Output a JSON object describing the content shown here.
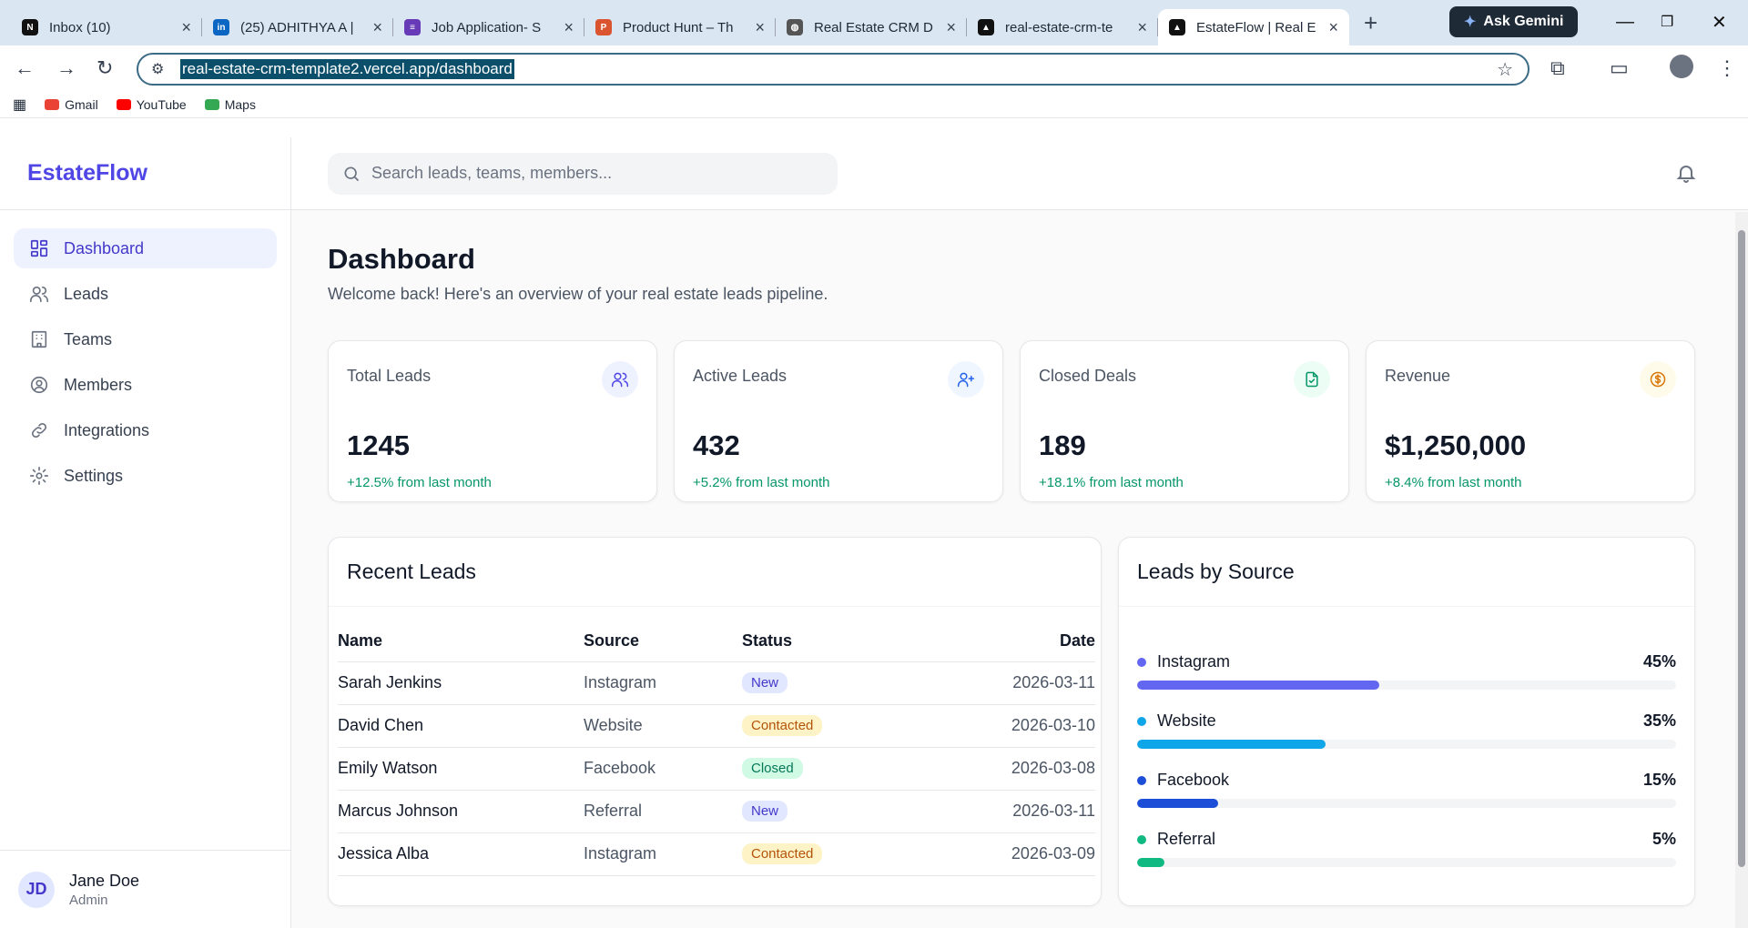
{
  "browser": {
    "tabs": [
      {
        "title": "Inbox (10)",
        "icon": "notion-icon"
      },
      {
        "title": "(25) ADHITHYA A |",
        "icon": "linkedin-icon"
      },
      {
        "title": "Job Application- S",
        "icon": "forms-icon"
      },
      {
        "title": "Product Hunt – Th",
        "icon": "producthunt-icon"
      },
      {
        "title": "Real Estate CRM D",
        "icon": "globe-icon"
      },
      {
        "title": "real-estate-crm-te",
        "icon": "vercel-icon"
      },
      {
        "title": "EstateFlow | Real E",
        "icon": "vercel-icon"
      }
    ],
    "gemini_label": "Ask Gemini",
    "url": "real-estate-crm-template2.vercel.app/dashboard",
    "bookmarks": [
      {
        "label": "Gmail",
        "icon": "gmail-icon"
      },
      {
        "label": "YouTube",
        "icon": "youtube-icon"
      },
      {
        "label": "Maps",
        "icon": "maps-icon"
      }
    ]
  },
  "sidebar": {
    "brand": "EstateFlow",
    "items": [
      {
        "label": "Dashboard",
        "icon": "dashboard-icon",
        "active": true
      },
      {
        "label": "Leads",
        "icon": "users-icon"
      },
      {
        "label": "Teams",
        "icon": "building-icon"
      },
      {
        "label": "Members",
        "icon": "user-circle-icon"
      },
      {
        "label": "Integrations",
        "icon": "link-icon"
      },
      {
        "label": "Settings",
        "icon": "gear-icon"
      }
    ],
    "user": {
      "initials": "JD",
      "name": "Jane Doe",
      "role": "Admin"
    }
  },
  "header": {
    "search_placeholder": "Search leads, teams, members..."
  },
  "page": {
    "title": "Dashboard",
    "subtitle": "Welcome back! Here's an overview of your real estate leads pipeline."
  },
  "stats": [
    {
      "label": "Total Leads",
      "value": "1245",
      "change": "+12.5% from last month",
      "icon": "users-icon",
      "bg": "#eef2ff",
      "fg": "#4f46e5"
    },
    {
      "label": "Active Leads",
      "value": "432",
      "change": "+5.2% from last month",
      "icon": "user-plus-icon",
      "bg": "#eff6ff",
      "fg": "#2563eb"
    },
    {
      "label": "Closed Deals",
      "value": "189",
      "change": "+18.1% from last month",
      "icon": "file-check-icon",
      "bg": "#ecfdf5",
      "fg": "#059669"
    },
    {
      "label": "Revenue",
      "value": "$1,250,000",
      "change": "+8.4% from last month",
      "icon": "dollar-icon",
      "bg": "#fffbeb",
      "fg": "#d97706"
    }
  ],
  "recent_leads": {
    "title": "Recent Leads",
    "columns": [
      "Name",
      "Source",
      "Status",
      "Date"
    ],
    "rows": [
      {
        "name": "Sarah Jenkins",
        "source": "Instagram",
        "status": "New",
        "date": "2026-03-11"
      },
      {
        "name": "David Chen",
        "source": "Website",
        "status": "Contacted",
        "date": "2026-03-10"
      },
      {
        "name": "Emily Watson",
        "source": "Facebook",
        "status": "Closed",
        "date": "2026-03-08"
      },
      {
        "name": "Marcus Johnson",
        "source": "Referral",
        "status": "New",
        "date": "2026-03-11"
      },
      {
        "name": "Jessica Alba",
        "source": "Instagram",
        "status": "Contacted",
        "date": "2026-03-09"
      }
    ],
    "status_colors": {
      "New": {
        "bg": "#e0e7ff",
        "fg": "#4338ca"
      },
      "Contacted": {
        "bg": "#fef3c7",
        "fg": "#b45309"
      },
      "Closed": {
        "bg": "#d1fae5",
        "fg": "#047857"
      }
    }
  },
  "leads_by_source": {
    "title": "Leads by Source",
    "items": [
      {
        "name": "Instagram",
        "percent": 45,
        "label": "45%",
        "color": "#6366f1"
      },
      {
        "name": "Website",
        "percent": 35,
        "label": "35%",
        "color": "#0ea5e9"
      },
      {
        "name": "Facebook",
        "percent": 15,
        "label": "15%",
        "color": "#1d4ed8"
      },
      {
        "name": "Referral",
        "percent": 5,
        "label": "5%",
        "color": "#10b981"
      }
    ]
  }
}
